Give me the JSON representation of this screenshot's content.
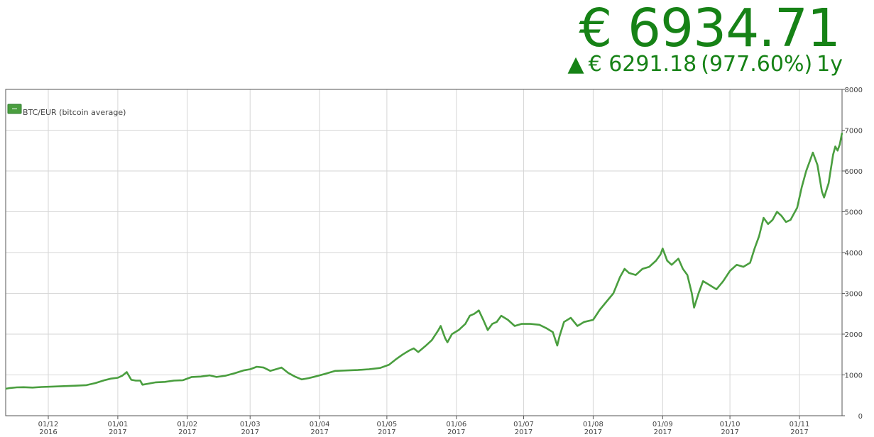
{
  "header": {
    "price": "€ 6934.71",
    "change_arrow": "▲",
    "change_amount": "€ 6291.18",
    "change_percent": "(977.60%)",
    "change_period": "1y"
  },
  "colors": {
    "accent": "#168216",
    "line": "#4a9e3f",
    "grid": "#d6d6d6"
  },
  "chart_data": {
    "type": "line",
    "series": [
      {
        "name": "BTC/EUR (bitcoin average)",
        "points": [
          [
            "2016-11-12",
            660
          ],
          [
            "2016-11-14",
            680
          ],
          [
            "2016-11-17",
            695
          ],
          [
            "2016-11-20",
            700
          ],
          [
            "2016-11-24",
            690
          ],
          [
            "2016-11-28",
            705
          ],
          [
            "2016-12-03",
            715
          ],
          [
            "2016-12-08",
            725
          ],
          [
            "2016-12-13",
            735
          ],
          [
            "2016-12-18",
            750
          ],
          [
            "2016-12-22",
            800
          ],
          [
            "2016-12-26",
            870
          ],
          [
            "2016-12-29",
            910
          ],
          [
            "2017-01-01",
            930
          ],
          [
            "2017-01-03",
            980
          ],
          [
            "2017-01-05",
            1070
          ],
          [
            "2017-01-07",
            880
          ],
          [
            "2017-01-09",
            860
          ],
          [
            "2017-01-11",
            860
          ],
          [
            "2017-01-12",
            760
          ],
          [
            "2017-01-15",
            790
          ],
          [
            "2017-01-18",
            820
          ],
          [
            "2017-01-22",
            830
          ],
          [
            "2017-01-26",
            860
          ],
          [
            "2017-01-30",
            870
          ],
          [
            "2017-02-03",
            950
          ],
          [
            "2017-02-07",
            960
          ],
          [
            "2017-02-11",
            990
          ],
          [
            "2017-02-14",
            950
          ],
          [
            "2017-02-18",
            980
          ],
          [
            "2017-02-22",
            1040
          ],
          [
            "2017-02-26",
            1110
          ],
          [
            "2017-03-01",
            1140
          ],
          [
            "2017-03-04",
            1200
          ],
          [
            "2017-03-07",
            1180
          ],
          [
            "2017-03-10",
            1100
          ],
          [
            "2017-03-12",
            1130
          ],
          [
            "2017-03-15",
            1180
          ],
          [
            "2017-03-18",
            1050
          ],
          [
            "2017-03-21",
            960
          ],
          [
            "2017-03-24",
            890
          ],
          [
            "2017-03-27",
            920
          ],
          [
            "2017-03-30",
            960
          ],
          [
            "2017-04-03",
            1020
          ],
          [
            "2017-04-08",
            1100
          ],
          [
            "2017-04-13",
            1110
          ],
          [
            "2017-04-18",
            1120
          ],
          [
            "2017-04-23",
            1140
          ],
          [
            "2017-04-28",
            1170
          ],
          [
            "2017-05-02",
            1250
          ],
          [
            "2017-05-05",
            1380
          ],
          [
            "2017-05-08",
            1500
          ],
          [
            "2017-05-11",
            1600
          ],
          [
            "2017-05-13",
            1650
          ],
          [
            "2017-05-15",
            1560
          ],
          [
            "2017-05-18",
            1700
          ],
          [
            "2017-05-21",
            1850
          ],
          [
            "2017-05-24",
            2100
          ],
          [
            "2017-05-25",
            2200
          ],
          [
            "2017-05-27",
            1900
          ],
          [
            "2017-05-28",
            1800
          ],
          [
            "2017-05-30",
            2000
          ],
          [
            "2017-06-02",
            2100
          ],
          [
            "2017-06-05",
            2250
          ],
          [
            "2017-06-07",
            2450
          ],
          [
            "2017-06-09",
            2500
          ],
          [
            "2017-06-11",
            2580
          ],
          [
            "2017-06-13",
            2350
          ],
          [
            "2017-06-15",
            2100
          ],
          [
            "2017-06-17",
            2250
          ],
          [
            "2017-06-19",
            2300
          ],
          [
            "2017-06-21",
            2450
          ],
          [
            "2017-06-24",
            2350
          ],
          [
            "2017-06-27",
            2200
          ],
          [
            "2017-06-30",
            2250
          ],
          [
            "2017-07-04",
            2250
          ],
          [
            "2017-07-08",
            2230
          ],
          [
            "2017-07-11",
            2150
          ],
          [
            "2017-07-14",
            2050
          ],
          [
            "2017-07-16",
            1720
          ],
          [
            "2017-07-17",
            1950
          ],
          [
            "2017-07-19",
            2300
          ],
          [
            "2017-07-22",
            2400
          ],
          [
            "2017-07-25",
            2200
          ],
          [
            "2017-07-28",
            2300
          ],
          [
            "2017-08-01",
            2350
          ],
          [
            "2017-08-04",
            2600
          ],
          [
            "2017-08-07",
            2800
          ],
          [
            "2017-08-10",
            3000
          ],
          [
            "2017-08-13",
            3400
          ],
          [
            "2017-08-15",
            3600
          ],
          [
            "2017-08-17",
            3500
          ],
          [
            "2017-08-20",
            3450
          ],
          [
            "2017-08-23",
            3600
          ],
          [
            "2017-08-26",
            3650
          ],
          [
            "2017-08-29",
            3800
          ],
          [
            "2017-08-31",
            3950
          ],
          [
            "2017-09-01",
            4100
          ],
          [
            "2017-09-03",
            3800
          ],
          [
            "2017-09-05",
            3700
          ],
          [
            "2017-09-08",
            3850
          ],
          [
            "2017-09-10",
            3600
          ],
          [
            "2017-09-12",
            3450
          ],
          [
            "2017-09-14",
            3000
          ],
          [
            "2017-09-15",
            2650
          ],
          [
            "2017-09-17",
            3000
          ],
          [
            "2017-09-19",
            3300
          ],
          [
            "2017-09-22",
            3200
          ],
          [
            "2017-09-25",
            3100
          ],
          [
            "2017-09-28",
            3300
          ],
          [
            "2017-10-01",
            3550
          ],
          [
            "2017-10-04",
            3700
          ],
          [
            "2017-10-07",
            3650
          ],
          [
            "2017-10-10",
            3750
          ],
          [
            "2017-10-12",
            4100
          ],
          [
            "2017-10-14",
            4400
          ],
          [
            "2017-10-16",
            4850
          ],
          [
            "2017-10-18",
            4700
          ],
          [
            "2017-10-20",
            4800
          ],
          [
            "2017-10-22",
            5000
          ],
          [
            "2017-10-24",
            4900
          ],
          [
            "2017-10-26",
            4750
          ],
          [
            "2017-10-28",
            4800
          ],
          [
            "2017-10-31",
            5100
          ],
          [
            "2017-11-02",
            5600
          ],
          [
            "2017-11-04",
            6000
          ],
          [
            "2017-11-06",
            6300
          ],
          [
            "2017-11-07",
            6450
          ],
          [
            "2017-11-09",
            6150
          ],
          [
            "2017-11-11",
            5500
          ],
          [
            "2017-11-12",
            5350
          ],
          [
            "2017-11-14",
            5700
          ],
          [
            "2017-11-16",
            6400
          ],
          [
            "2017-11-17",
            6600
          ],
          [
            "2017-11-18",
            6500
          ],
          [
            "2017-11-19",
            6650
          ],
          [
            "2017-11-20",
            6934.71
          ]
        ]
      }
    ],
    "x_range": [
      "2016-11-12",
      "2017-11-20"
    ],
    "y_range": [
      0,
      8000
    ],
    "y_ticks": [
      0,
      1000,
      2000,
      3000,
      4000,
      5000,
      6000,
      7000,
      8000
    ],
    "y_axis_side": "right",
    "x_ticks": [
      {
        "date": "2016-12-01",
        "line1": "01/12",
        "line2": "2016"
      },
      {
        "date": "2017-01-01",
        "line1": "01/01",
        "line2": "2017"
      },
      {
        "date": "2017-02-01",
        "line1": "01/02",
        "line2": "2017"
      },
      {
        "date": "2017-03-01",
        "line1": "01/03",
        "line2": "2017"
      },
      {
        "date": "2017-04-01",
        "line1": "01/04",
        "line2": "2017"
      },
      {
        "date": "2017-05-01",
        "line1": "01/05",
        "line2": "2017"
      },
      {
        "date": "2017-06-01",
        "line1": "01/06",
        "line2": "2017"
      },
      {
        "date": "2017-07-01",
        "line1": "01/07",
        "line2": "2017"
      },
      {
        "date": "2017-08-01",
        "line1": "01/08",
        "line2": "2017"
      },
      {
        "date": "2017-09-01",
        "line1": "01/09",
        "line2": "2017"
      },
      {
        "date": "2017-10-01",
        "line1": "01/10",
        "line2": "2017"
      },
      {
        "date": "2017-11-01",
        "line1": "01/11",
        "line2": "2017"
      }
    ],
    "grid": true,
    "legend": {
      "position": "top-left",
      "label": "BTC/EUR (bitcoin average)"
    }
  }
}
